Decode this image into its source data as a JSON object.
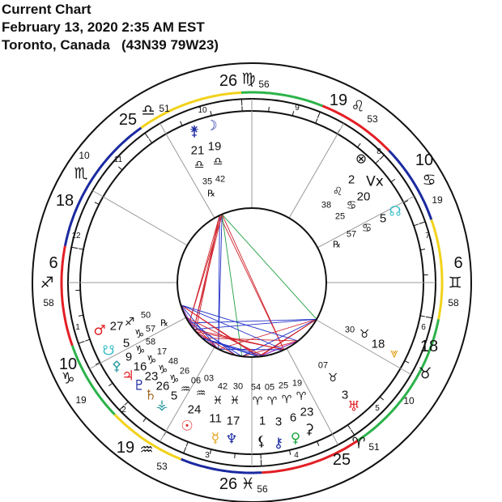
{
  "header": {
    "title": "Current Chart",
    "datetime": "February 13, 2020 2:35 AM EST",
    "location": "Toronto, Canada   (43N39 79W23)"
  },
  "colors": {
    "fire": "#e31e24",
    "earth": "#2cb34a",
    "air": "#f2d21b",
    "water": "#1b2aa0",
    "aspect_hard": "#d0202a",
    "aspect_soft": "#2030c8",
    "aspect_green": "#20a040",
    "aspect_minor": "#9a30c0"
  },
  "signs": [
    "♈",
    "♉",
    "♊",
    "♋",
    "♌",
    "♍",
    "♎",
    "♏",
    "♐",
    "♑",
    "♒",
    "♓"
  ],
  "cusps": [
    {
      "house": "1",
      "deg": "6",
      "sign": "♐",
      "min": "58",
      "lon": 246.97
    },
    {
      "house": "2",
      "deg": "10",
      "sign": "♑",
      "min": "19",
      "lon": 280.32
    },
    {
      "house": "3",
      "deg": "19",
      "sign": "♒",
      "min": "53",
      "lon": 319.88
    },
    {
      "house": "4",
      "deg": "26",
      "sign": "♓",
      "min": "56",
      "lon": 356.93
    },
    {
      "house": "5",
      "deg": "25",
      "sign": "♈",
      "min": "51",
      "lon": 25.85
    },
    {
      "house": "6",
      "deg": "18",
      "sign": "♉",
      "min": "10",
      "lon": 48.17
    },
    {
      "house": "7",
      "deg": "6",
      "sign": "♊",
      "min": "58",
      "lon": 66.97
    },
    {
      "house": "8",
      "deg": "10",
      "sign": "♋",
      "min": "19",
      "lon": 100.32
    },
    {
      "house": "9",
      "deg": "19",
      "sign": "♌",
      "min": "53",
      "lon": 139.88
    },
    {
      "house": "10",
      "deg": "26",
      "sign": "♍",
      "min": "56",
      "lon": 176.93
    },
    {
      "house": "11",
      "deg": "25",
      "sign": "♎",
      "min": "51",
      "lon": 205.85
    },
    {
      "house": "12",
      "deg": "18",
      "sign": "♏",
      "min": "10",
      "lon": 228.17
    }
  ],
  "planets": [
    {
      "name": "juno",
      "glyph": "⚵",
      "color": "#1b2aa0",
      "deg": "21",
      "sign": "♎",
      "min": "35",
      "retro": "℞",
      "lon": 201.58
    },
    {
      "name": "moon",
      "glyph": "☽",
      "color": "#1b2aa0",
      "deg": "19",
      "sign": "♎",
      "min": "42",
      "lon": 199.7
    },
    {
      "name": "part-of-fortune",
      "glyph": "⊗",
      "color": "#111111",
      "deg": "2",
      "sign": "♌",
      "min": "38",
      "lon": 122.63
    },
    {
      "name": "vertex",
      "glyph": "Vx",
      "color": "#111111",
      "deg": "20",
      "sign": "♋",
      "min": "25",
      "lon": 110.42
    },
    {
      "name": "north-node",
      "glyph": "☊",
      "color": "#3bbfc8",
      "deg": "5",
      "sign": "♋",
      "min": "57",
      "retro": "℞",
      "lon": 95.95
    },
    {
      "name": "asteroid",
      "glyph": "⩔",
      "color": "#e2a11b",
      "deg": "18",
      "sign": "♉",
      "min": "30",
      "lon": 48.5
    },
    {
      "name": "uranus",
      "glyph": "♅",
      "color": "#e31e24",
      "deg": "3",
      "sign": "♉",
      "min": "07",
      "lon": 33.12
    },
    {
      "name": "sun",
      "glyph": "☉",
      "color": "#e31e24",
      "deg": "24",
      "sign": "♒",
      "min": "03",
      "lon": 324.05
    },
    {
      "name": "mercury",
      "glyph": "☿",
      "color": "#e2a11b",
      "deg": "11",
      "sign": "♓",
      "min": "42",
      "lon": 341.7
    },
    {
      "name": "neptune",
      "glyph": "♆",
      "color": "#1b2aa0",
      "deg": "17",
      "sign": "♓",
      "min": "30",
      "lon": 347.5
    },
    {
      "name": "lilith",
      "glyph": "⚸",
      "color": "#111111",
      "deg": "1",
      "sign": "♈",
      "min": "54",
      "lon": 1.9
    },
    {
      "name": "chiron",
      "glyph": "⚷",
      "color": "#1b2aa0",
      "deg": "3",
      "sign": "♈",
      "min": "05",
      "lon": 3.08
    },
    {
      "name": "venus",
      "glyph": "♀",
      "color": "#1aa33a",
      "deg": "6",
      "sign": "♈",
      "min": "25",
      "lon": 6.42
    },
    {
      "name": "ceres",
      "glyph": "⚳",
      "color": "#111111",
      "deg": "23",
      "sign": "♈",
      "min": "19",
      "lon": 23.32
    },
    {
      "name": "mars",
      "glyph": "♂",
      "color": "#e31e24",
      "deg": "27",
      "sign": "♐",
      "min": "50",
      "lon": 267.83
    },
    {
      "name": "south-node",
      "glyph": "☋",
      "color": "#3bbfc8",
      "deg": "5",
      "sign": "♑",
      "min": "57",
      "retro": "℞",
      "lon": 275.95
    },
    {
      "name": "pallas",
      "glyph": "⚴",
      "color": "#2a9aa0",
      "deg": "9",
      "sign": "♑",
      "min": "58",
      "lon": 279.97
    },
    {
      "name": "jupiter",
      "glyph": "♃",
      "color": "#e31e24",
      "deg": "16",
      "sign": "♑",
      "min": "17",
      "lon": 286.28
    },
    {
      "name": "pluto",
      "glyph": "♇",
      "color": "#1b2aa0",
      "deg": "23",
      "sign": "♑",
      "min": "48",
      "lon": 293.8
    },
    {
      "name": "saturn",
      "glyph": "♄",
      "color": "#a06a2a",
      "deg": "26",
      "sign": "♑",
      "min": "26",
      "lon": 296.43
    },
    {
      "name": "vesta",
      "glyph": "⚶",
      "color": "#2a9aa0",
      "deg": "5",
      "sign": "♒",
      "min": "06",
      "lon": 305.1
    }
  ]
}
